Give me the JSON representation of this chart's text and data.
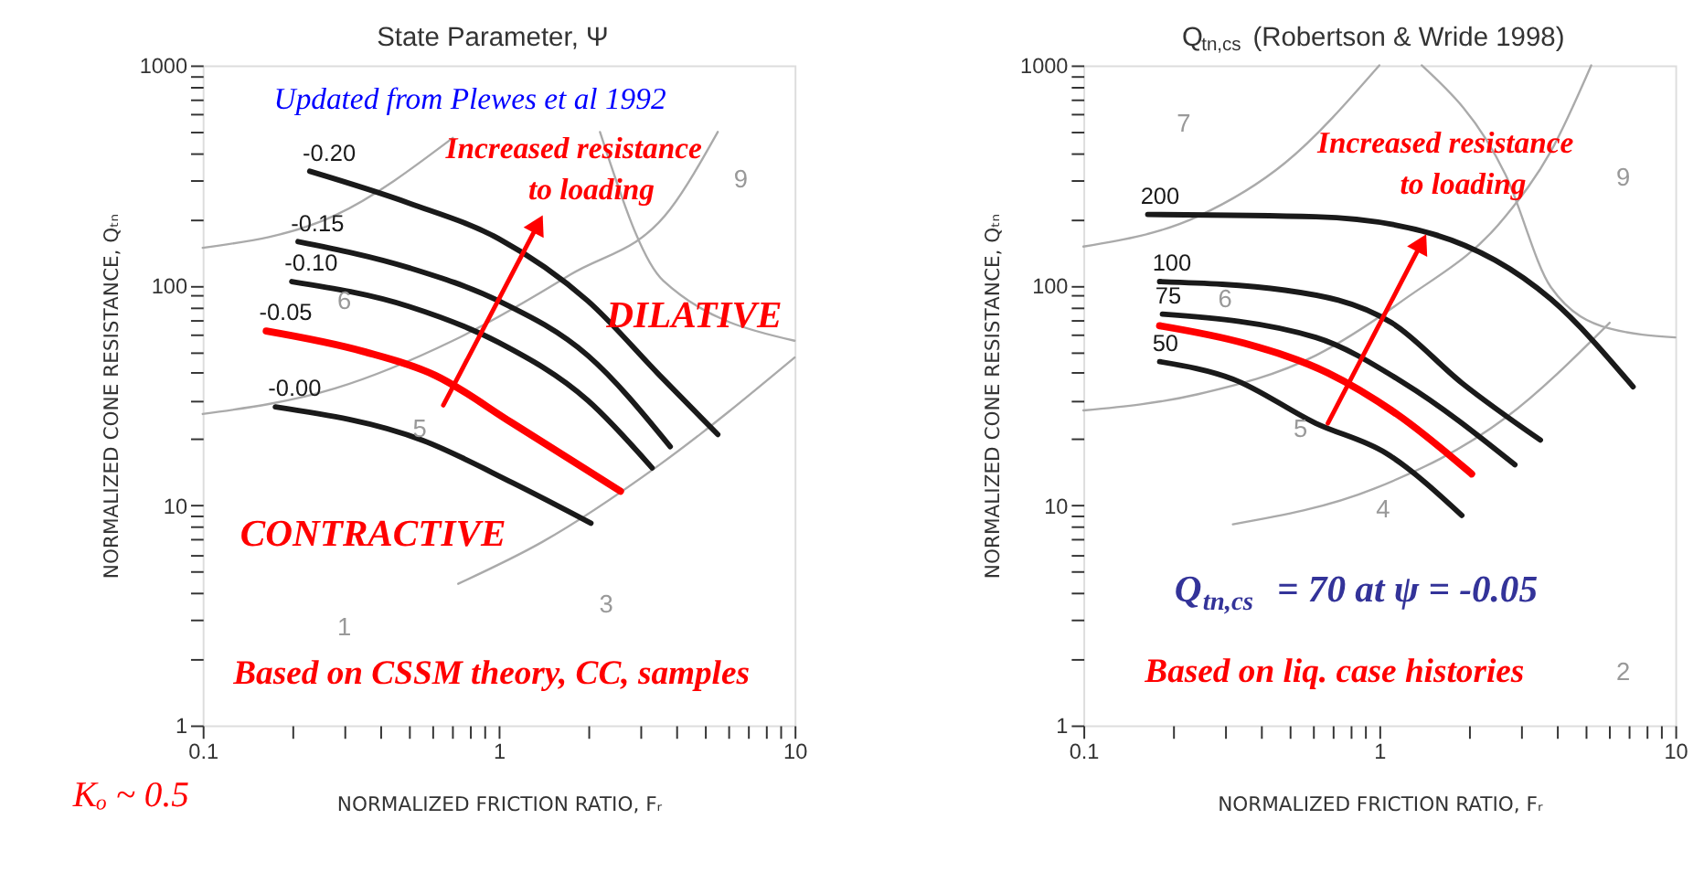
{
  "chart_data": [
    {
      "type": "line",
      "title": "State Parameter, Ψ",
      "xlabel": "NORMALIZED FRICTION RATIO, Fᵣ",
      "ylabel": "NORMALIZED CONE RESISTANCE, Qₜₙ",
      "log": "xy",
      "xlim": [
        0.1,
        10
      ],
      "ylim": [
        1,
        1000
      ],
      "xticks": [
        0.1,
        {
          "value": 0.2,
          "label": null
        },
        {
          "value": 0.3,
          "label": null
        },
        {
          "value": 0.4,
          "label": null
        },
        {
          "value": 0.5,
          "label": null
        },
        {
          "value": 0.6,
          "label": null
        },
        {
          "value": 0.7,
          "label": null
        },
        {
          "value": 0.8,
          "label": null
        },
        {
          "value": 0.9,
          "label": null
        },
        1,
        {
          "value": 2,
          "label": null
        },
        {
          "value": 3,
          "label": null
        },
        {
          "value": 4,
          "label": null
        },
        {
          "value": 5,
          "label": null
        },
        {
          "value": 6,
          "label": null
        },
        {
          "value": 7,
          "label": null
        },
        {
          "value": 8,
          "label": null
        },
        {
          "value": 9,
          "label": null
        },
        10
      ],
      "yticks": [
        1,
        {
          "value": 2,
          "label": null
        },
        {
          "value": 3,
          "label": null
        },
        {
          "value": 4,
          "label": null
        },
        {
          "value": 5,
          "label": null
        },
        {
          "value": 6,
          "label": null
        },
        {
          "value": 7,
          "label": null
        },
        {
          "value": 8,
          "label": null
        },
        {
          "value": 9,
          "label": null
        },
        10,
        {
          "value": 20,
          "label": null
        },
        {
          "value": 30,
          "label": null
        },
        {
          "value": 40,
          "label": null
        },
        {
          "value": 50,
          "label": null
        },
        {
          "value": 60,
          "label": null
        },
        {
          "value": 70,
          "label": null
        },
        {
          "value": 80,
          "label": null
        },
        {
          "value": 90,
          "label": null
        },
        100,
        {
          "value": 200,
          "label": null
        },
        {
          "value": 300,
          "label": null
        },
        {
          "value": 400,
          "label": null
        },
        {
          "value": 500,
          "label": null
        },
        {
          "value": 600,
          "label": null
        },
        {
          "value": 700,
          "label": null
        },
        {
          "value": 800,
          "label": null
        },
        {
          "value": 900,
          "label": null
        },
        1000
      ],
      "grid": false,
      "series": [
        {
          "color": "#aaaaaa",
          "x": [
            0.1,
            0.28,
            0.7,
            1.75,
            3.8,
            5.5
          ],
          "values": [
            26,
            34,
            56,
            112,
            222,
            498
          ]
        },
        {
          "color": "#aaaaaa",
          "x": [
            0.1,
            0.28,
            0.7
          ],
          "values": [
            148,
            208,
            468
          ]
        },
        {
          "color": "#aaaaaa",
          "x": [
            2.2,
            3.6,
            10
          ],
          "values": [
            498,
            105,
            56
          ]
        },
        {
          "color": "#aaaaaa",
          "x": [
            0.73,
            1.4,
            3.5,
            10
          ],
          "values": [
            4.4,
            6.8,
            15.3,
            47
          ]
        },
        {
          "name": "-0.20",
          "color": "#1a1a1a",
          "x": [
            0.23,
            0.5,
            1.0,
            2.0,
            3.5,
            5.5
          ],
          "values": [
            330,
            236,
            163,
            85,
            39,
            21
          ]
        },
        {
          "name": "-0.15",
          "color": "#1a1a1a",
          "x": [
            0.21,
            0.5,
            1.0,
            2.0,
            3.8
          ],
          "values": [
            158,
            120,
            85,
            48,
            18.5
          ]
        },
        {
          "name": "-0.10",
          "color": "#1a1a1a",
          "x": [
            0.2,
            0.5,
            1.0,
            2.0,
            3.3
          ],
          "values": [
            104,
            80,
            55,
            30,
            14.8
          ]
        },
        {
          "name": "-0.05",
          "color": "#ff0000",
          "x": [
            0.164,
            0.35,
            0.61,
            1.11,
            2.58
          ],
          "values": [
            62,
            50,
            39,
            23.7,
            11.6
          ]
        },
        {
          "name": "-0.00",
          "color": "#1a1a1a",
          "x": [
            0.176,
            0.556,
            1.11,
            2.05
          ],
          "values": [
            28,
            19.7,
            12.7,
            8.3
          ]
        },
        {
          "color": "#ff0000",
          "marker": "triangle",
          "x": [
            0.65,
            1.36
          ],
          "values": [
            28.5,
            190
          ]
        }
      ],
      "annotations": [
        "Updated from Plewes et al 1992",
        "Increased resistance\nto loading",
        "DILATIVE",
        "CONTRACTIVE",
        "Based on CSSM theory, CC, samples",
        "Kₒ ~ 0.5",
        "1",
        "3",
        "5",
        "6",
        "9"
      ]
    },
    {
      "type": "line",
      "title": "Q$_{tn,cs}$ (Robertson & Wride 1998)",
      "xlabel": "NORMALIZED FRICTION RATIO, Fᵣ",
      "ylabel": "NORMALIZED CONE RESISTANCE, Qₜₙ",
      "log": "xy",
      "xlim": [
        0.1,
        10
      ],
      "ylim": [
        1,
        1000
      ],
      "xticks": [
        0.1,
        {
          "value": 0.2,
          "label": null
        },
        {
          "value": 0.3,
          "label": null
        },
        {
          "value": 0.4,
          "label": null
        },
        {
          "value": 0.5,
          "label": null
        },
        {
          "value": 0.6,
          "label": null
        },
        {
          "value": 0.7,
          "label": null
        },
        {
          "value": 0.8,
          "label": null
        },
        {
          "value": 0.9,
          "label": null
        },
        1,
        {
          "value": 2,
          "label": null
        },
        {
          "value": 3,
          "label": null
        },
        {
          "value": 4,
          "label": null
        },
        {
          "value": 5,
          "label": null
        },
        {
          "value": 6,
          "label": null
        },
        {
          "value": 7,
          "label": null
        },
        {
          "value": 8,
          "label": null
        },
        {
          "value": 9,
          "label": null
        },
        10
      ],
      "yticks": [
        1,
        {
          "value": 2,
          "label": null
        },
        {
          "value": 3,
          "label": null
        },
        {
          "value": 4,
          "label": null
        },
        {
          "value": 5,
          "label": null
        },
        {
          "value": 6,
          "label": null
        },
        {
          "value": 7,
          "label": null
        },
        {
          "value": 8,
          "label": null
        },
        {
          "value": 9,
          "label": null
        },
        10,
        {
          "value": 20,
          "label": null
        },
        {
          "value": 30,
          "label": null
        },
        {
          "value": 40,
          "label": null
        },
        {
          "value": 50,
          "label": null
        },
        {
          "value": 60,
          "label": null
        },
        {
          "value": 70,
          "label": null
        },
        {
          "value": 80,
          "label": null
        },
        {
          "value": 90,
          "label": null
        },
        100,
        {
          "value": 200,
          "label": null
        },
        {
          "value": 300,
          "label": null
        },
        {
          "value": 400,
          "label": null
        },
        {
          "value": 500,
          "label": null
        },
        {
          "value": 600,
          "label": null
        },
        {
          "value": 700,
          "label": null
        },
        {
          "value": 800,
          "label": null
        },
        {
          "value": 900,
          "label": null
        },
        1000
      ],
      "grid": false,
      "series": [
        {
          "color": "#aaaaaa",
          "x": [
            0.1,
            0.244,
            0.61,
            1.21,
            2.67,
            3.8,
            5.2
          ],
          "values": [
            27,
            32,
            48,
            86,
            206,
            407,
            1000
          ]
        },
        {
          "color": "#aaaaaa",
          "x": [
            0.1,
            0.244,
            0.48,
            1.0
          ],
          "values": [
            150,
            206,
            360,
            1000
          ]
        },
        {
          "color": "#aaaaaa",
          "x": [
            0.32,
            0.96,
            2.67,
            6.0
          ],
          "values": [
            8.2,
            11.9,
            25,
            67.6
          ]
        },
        {
          "color": "#aaaaaa",
          "x": [
            1.39,
            2.67,
            3.8,
            6.0,
            10
          ],
          "values": [
            1000,
            318,
            98,
            63.6,
            58
          ]
        },
        {
          "name": "200",
          "color": "#1a1a1a",
          "x": [
            0.165,
            0.61,
            1.52,
            3.8,
            7.2
          ],
          "values": [
            210,
            205,
            171,
            86.5,
            34.6
          ]
        },
        {
          "name": "100",
          "color": "#1a1a1a",
          "x": [
            0.181,
            0.48,
            1.1,
            1.9,
            3.5
          ],
          "values": [
            104,
            95,
            67.6,
            36,
            19.8
          ]
        },
        {
          "name": "75",
          "color": "#1a1a1a",
          "x": [
            0.185,
            0.61,
            1.21,
            2.87
          ],
          "values": [
            74,
            58,
            36,
            15.3
          ]
        },
        {
          "color": "#ff0000",
          "x": [
            0.181,
            0.35,
            0.67,
            1.15,
            2.05
          ],
          "values": [
            65.5,
            54.5,
            40,
            25.9,
            13.9
          ]
        },
        {
          "name": "50",
          "color": "#1a1a1a",
          "x": [
            0.181,
            0.32,
            0.61,
            1.05,
            1.9
          ],
          "values": [
            45,
            37.5,
            23.6,
            17.3,
            9
          ]
        },
        {
          "color": "#ff0000",
          "marker": "triangle",
          "x": [
            0.67,
            1.39
          ],
          "values": [
            23.6,
            156
          ]
        }
      ],
      "annotations": [
        "Increased resistance\nto loading",
        "Q$_{tn,cs}$ = 70 at ψ = -0.05",
        "Based on liq. case histories",
        "7",
        "6",
        "5",
        "4",
        "9",
        "2"
      ]
    }
  ]
}
